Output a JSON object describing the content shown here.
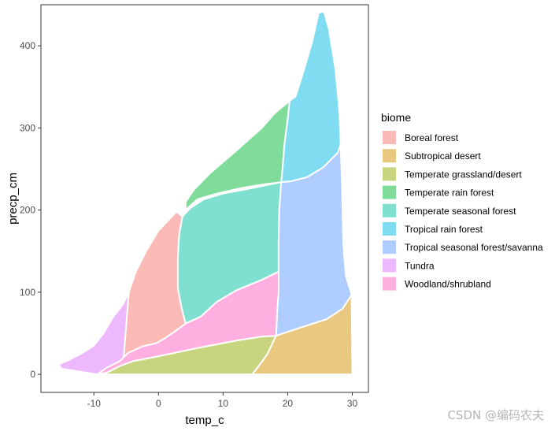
{
  "chart_data": {
    "type": "area",
    "xlabel": "temp_c",
    "ylabel": "precp_cm",
    "xlim": [
      -18.2,
      32.5
    ],
    "ylim": [
      -22,
      450
    ],
    "x_ticks": [
      -10,
      0,
      10,
      20,
      30
    ],
    "y_ticks": [
      0,
      100,
      200,
      300,
      400
    ],
    "grid": false,
    "legend_title": "biome",
    "legend_position": "right",
    "series": [
      {
        "name": "Boreal forest",
        "color": "#F8766D",
        "polygon": [
          [
            -5.4,
            20
          ],
          [
            -4.6,
            100
          ],
          [
            -3.5,
            125
          ],
          [
            -1.9,
            150
          ],
          [
            0,
            175
          ],
          [
            2.8,
            198
          ],
          [
            3.7,
            192
          ],
          [
            3.2,
            170
          ],
          [
            3,
            140
          ],
          [
            3,
            105
          ],
          [
            3.6,
            80
          ],
          [
            4.2,
            62
          ],
          [
            2.5,
            52
          ],
          [
            1,
            44
          ],
          [
            -0.3,
            38
          ],
          [
            -2.5,
            34
          ],
          [
            -4.7,
            26
          ]
        ]
      },
      {
        "name": "Subtropical desert",
        "color": "#D39200",
        "polygon": [
          [
            14.5,
            0
          ],
          [
            15.5,
            10
          ],
          [
            16.8,
            24
          ],
          [
            18.2,
            47
          ],
          [
            22,
            57
          ],
          [
            26,
            67
          ],
          [
            28.5,
            80
          ],
          [
            29.9,
            97
          ],
          [
            30,
            0
          ]
        ]
      },
      {
        "name": "Temperate grassland/desert",
        "color": "#93AA00",
        "polygon": [
          [
            -9.5,
            0
          ],
          [
            -8,
            2
          ],
          [
            -6,
            10
          ],
          [
            -4,
            16
          ],
          [
            0,
            22
          ],
          [
            6,
            32
          ],
          [
            12,
            41
          ],
          [
            16,
            46
          ],
          [
            18.2,
            47
          ],
          [
            16.8,
            24
          ],
          [
            15.5,
            10
          ],
          [
            14.5,
            0
          ]
        ]
      },
      {
        "name": "Temperate rain forest",
        "color": "#00BA38",
        "polygon": [
          [
            4.2,
            200
          ],
          [
            6,
            213
          ],
          [
            9,
            220
          ],
          [
            13,
            227
          ],
          [
            16,
            231
          ],
          [
            19,
            234
          ],
          [
            19.2,
            250
          ],
          [
            19.5,
            280
          ],
          [
            20,
            310
          ],
          [
            20.3,
            333
          ],
          [
            18,
            318
          ],
          [
            16,
            300
          ],
          [
            12,
            272
          ],
          [
            8,
            245
          ],
          [
            5.5,
            225
          ],
          [
            4.2,
            210
          ]
        ]
      },
      {
        "name": "Temperate seasonal forest",
        "color": "#00C19F",
        "polygon": [
          [
            3.7,
            192
          ],
          [
            5,
            203
          ],
          [
            7,
            213
          ],
          [
            10,
            220
          ],
          [
            14,
            226
          ],
          [
            19,
            234
          ],
          [
            18.7,
            200
          ],
          [
            18.6,
            160
          ],
          [
            18.6,
            125
          ],
          [
            16,
            115
          ],
          [
            12,
            102
          ],
          [
            9,
            88
          ],
          [
            6.5,
            70
          ],
          [
            4.2,
            62
          ],
          [
            3.6,
            80
          ],
          [
            3,
            105
          ],
          [
            3,
            140
          ],
          [
            3.2,
            170
          ]
        ]
      },
      {
        "name": "Tropical rain forest",
        "color": "#00B9E3",
        "polygon": [
          [
            19,
            234
          ],
          [
            20.5,
            235
          ],
          [
            23,
            240
          ],
          [
            25.5,
            252
          ],
          [
            27.8,
            270
          ],
          [
            28.2,
            280
          ],
          [
            28,
            320
          ],
          [
            27.4,
            370
          ],
          [
            26.4,
            420
          ],
          [
            25.6,
            442
          ],
          [
            24.8,
            440
          ],
          [
            23.8,
            405
          ],
          [
            22.5,
            370
          ],
          [
            21.2,
            338
          ],
          [
            20.3,
            333
          ],
          [
            20,
            310
          ],
          [
            19.5,
            280
          ],
          [
            19.2,
            250
          ]
        ]
      },
      {
        "name": "Tropical seasonal forest/savanna",
        "color": "#619CFF",
        "polygon": [
          [
            18.6,
            125
          ],
          [
            18.6,
            160
          ],
          [
            18.7,
            200
          ],
          [
            19,
            234
          ],
          [
            20.5,
            235
          ],
          [
            23,
            240
          ],
          [
            25.5,
            252
          ],
          [
            27.8,
            270
          ],
          [
            28.2,
            280
          ],
          [
            28.4,
            230
          ],
          [
            28.6,
            160
          ],
          [
            29,
            120
          ],
          [
            29.9,
            97
          ],
          [
            28.5,
            80
          ],
          [
            26,
            67
          ],
          [
            22,
            57
          ],
          [
            18.2,
            47
          ],
          [
            18.4,
            80
          ],
          [
            18.6,
            100
          ]
        ]
      },
      {
        "name": "Tundra",
        "color": "#DB72FB",
        "polygon": [
          [
            -15.5,
            12
          ],
          [
            -14,
            17
          ],
          [
            -12,
            25
          ],
          [
            -10,
            35
          ],
          [
            -8.5,
            50
          ],
          [
            -7,
            70
          ],
          [
            -5.5,
            85
          ],
          [
            -4.6,
            100
          ],
          [
            -5.4,
            20
          ],
          [
            -6.5,
            12
          ],
          [
            -8,
            5
          ],
          [
            -9.5,
            0
          ],
          [
            -12,
            3
          ],
          [
            -15,
            7
          ]
        ]
      },
      {
        "name": "Woodland/shrubland",
        "color": "#FF61C3",
        "polygon": [
          [
            -9.5,
            0
          ],
          [
            -8,
            8
          ],
          [
            -6,
            16
          ],
          [
            -4.7,
            26
          ],
          [
            -2.5,
            34
          ],
          [
            -0.3,
            38
          ],
          [
            1,
            44
          ],
          [
            2.5,
            52
          ],
          [
            4.2,
            62
          ],
          [
            6.5,
            70
          ],
          [
            9,
            88
          ],
          [
            12,
            102
          ],
          [
            16,
            115
          ],
          [
            18.6,
            125
          ],
          [
            18.6,
            100
          ],
          [
            18.4,
            80
          ],
          [
            18.2,
            47
          ],
          [
            16,
            46
          ],
          [
            12,
            41
          ],
          [
            6,
            32
          ],
          [
            0,
            22
          ],
          [
            -4,
            16
          ],
          [
            -6,
            10
          ],
          [
            -8,
            2
          ]
        ]
      }
    ]
  },
  "watermark": "CSDN @编码农夫"
}
